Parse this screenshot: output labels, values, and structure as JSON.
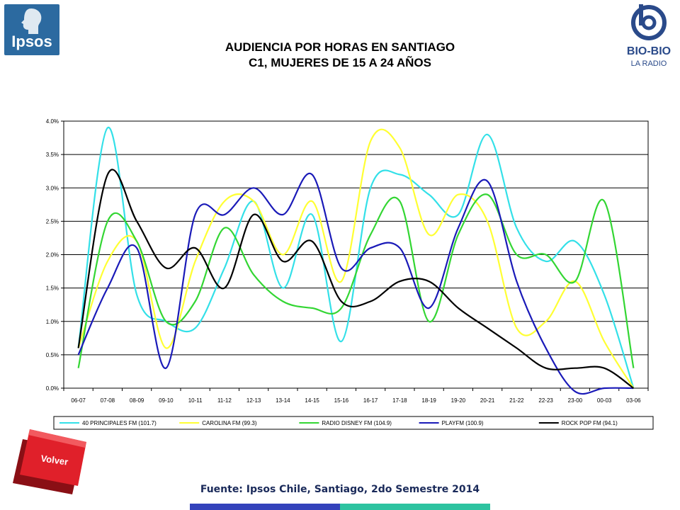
{
  "header": {
    "title_line1": "AUDIENCIA POR HORAS EN SANTIAGO",
    "title_line2": "C1, MUJERES DE 15 A 24 AÑOS",
    "logo_left": "Ipsos",
    "logo_right_name": "BIO-BIO",
    "logo_right_sub": "LA RADIO"
  },
  "footer": {
    "source": "Fuente: Ipsos Chile, Santiago, 2do Semestre 2014",
    "back_button": "Volver"
  },
  "colors": {
    "bar_blue": "#3342bb",
    "bar_green": "#2dc3a0",
    "volver_red": "#e0202a"
  },
  "chart_data": {
    "type": "line",
    "categories": [
      "06-07",
      "07-08",
      "08-09",
      "09-10",
      "10-11",
      "11-12",
      "12-13",
      "13-14",
      "14-15",
      "15-16",
      "16-17",
      "17-18",
      "18-19",
      "19-20",
      "20-21",
      "21-22",
      "22-23",
      "23-00",
      "00-03",
      "03-06"
    ],
    "y_ticks": [
      "0.0%",
      "0.5%",
      "1.0%",
      "1.5%",
      "2.0%",
      "2.5%",
      "3.0%",
      "3.5%",
      "4.0%"
    ],
    "ylim": [
      0,
      0.04
    ],
    "grid": true,
    "legend_position": "bottom",
    "series": [
      {
        "name": "40 PRINCIPALES FM (101.7)",
        "color": "#33e0e8",
        "values": [
          0.006,
          0.039,
          0.014,
          0.01,
          0.009,
          0.018,
          0.028,
          0.015,
          0.026,
          0.007,
          0.03,
          0.032,
          0.029,
          0.026,
          0.038,
          0.024,
          0.019,
          0.022,
          0.014,
          0.0
        ]
      },
      {
        "name": "CAROLINA FM (99.3)",
        "color": "#ffff33",
        "values": [
          0.006,
          0.019,
          0.022,
          0.006,
          0.019,
          0.028,
          0.028,
          0.02,
          0.028,
          0.016,
          0.037,
          0.036,
          0.023,
          0.029,
          0.025,
          0.009,
          0.01,
          0.016,
          0.007,
          0.0
        ]
      },
      {
        "name": "RADIO DISNEY FM (104.9)",
        "color": "#33d633",
        "values": [
          0.003,
          0.025,
          0.022,
          0.01,
          0.013,
          0.024,
          0.017,
          0.013,
          0.012,
          0.012,
          0.023,
          0.028,
          0.01,
          0.023,
          0.029,
          0.02,
          0.02,
          0.016,
          0.028,
          0.003
        ]
      },
      {
        "name": "PLAYFM (100.9)",
        "color": "#1a1ab8",
        "values": [
          0.005,
          0.015,
          0.021,
          0.003,
          0.026,
          0.026,
          0.03,
          0.026,
          0.032,
          0.018,
          0.021,
          0.021,
          0.012,
          0.024,
          0.031,
          0.016,
          0.006,
          -0.0005,
          0.0,
          0.0
        ]
      },
      {
        "name": "ROCK  POP FM (94.1)",
        "color": "#000000",
        "values": [
          0.006,
          0.032,
          0.025,
          0.018,
          0.021,
          0.015,
          0.026,
          0.019,
          0.022,
          0.013,
          0.013,
          0.016,
          0.016,
          0.012,
          0.009,
          0.006,
          0.003,
          0.003,
          0.003,
          0.0
        ]
      }
    ]
  }
}
